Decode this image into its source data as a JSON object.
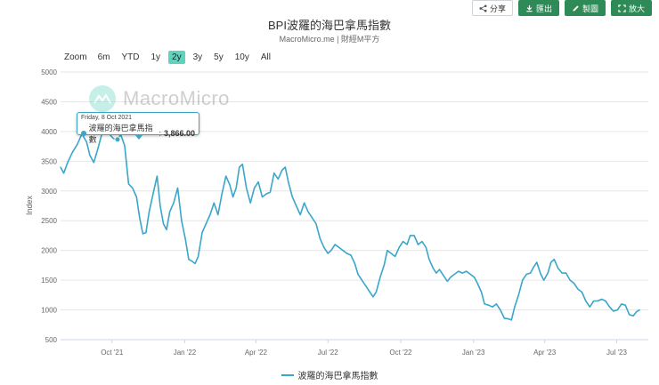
{
  "toolbar": {
    "share": "分享",
    "export": "匯出",
    "copy": "製圖",
    "enlarge": "放大"
  },
  "watermark": "MacroMicro",
  "zoom": {
    "label": "Zoom",
    "options": [
      "6m",
      "YTD",
      "1y",
      "2y",
      "3y",
      "5y",
      "10y",
      "All"
    ],
    "active": "2y"
  },
  "tooltip": {
    "date": "Friday, 8 Oct 2021",
    "series": "波羅的海巴拿馬指數",
    "value": "3,866.00"
  },
  "colors": {
    "series": "#3aa6c9",
    "active_zoom": "#5fd3be",
    "button_green": "#2e8b57"
  },
  "chart_data": {
    "type": "line",
    "title": "BPI波羅的海巴拿馬指數",
    "subtitle": "MacroMicro.me | 財經M平方",
    "ylabel": "Index",
    "ylim": [
      500,
      5000
    ],
    "yticks": [
      500,
      1000,
      1500,
      2000,
      2500,
      3000,
      3500,
      4000,
      4500,
      5000
    ],
    "xlim": [
      "2021-07-28",
      "2023-08-10"
    ],
    "xticks": [
      {
        "date": "2021-10-01",
        "label": "Oct '21"
      },
      {
        "date": "2022-01-01",
        "label": "Jan '22"
      },
      {
        "date": "2022-04-01",
        "label": "Apr '22"
      },
      {
        "date": "2022-07-01",
        "label": "Jul '22"
      },
      {
        "date": "2022-10-01",
        "label": "Oct '22"
      },
      {
        "date": "2023-01-01",
        "label": "Jan '23"
      },
      {
        "date": "2023-04-01",
        "label": "Apr '23"
      },
      {
        "date": "2023-07-01",
        "label": "Jul '23"
      }
    ],
    "grid": true,
    "legend_position": "bottom",
    "series": [
      {
        "name": "波羅的海巴拿馬指數",
        "points": [
          [
            "2021-07-28",
            3400
          ],
          [
            "2021-08-01",
            3300
          ],
          [
            "2021-08-06",
            3480
          ],
          [
            "2021-08-12",
            3650
          ],
          [
            "2021-08-18",
            3780
          ],
          [
            "2021-08-24",
            3960
          ],
          [
            "2021-08-30",
            3820
          ],
          [
            "2021-09-03",
            3600
          ],
          [
            "2021-09-08",
            3480
          ],
          [
            "2021-09-13",
            3700
          ],
          [
            "2021-09-18",
            3950
          ],
          [
            "2021-09-23",
            4060
          ],
          [
            "2021-09-28",
            3950
          ],
          [
            "2021-10-03",
            3880
          ],
          [
            "2021-10-08",
            3866
          ],
          [
            "2021-10-12",
            3950
          ],
          [
            "2021-10-17",
            3760
          ],
          [
            "2021-10-22",
            3120
          ],
          [
            "2021-10-27",
            3050
          ],
          [
            "2021-11-01",
            2900
          ],
          [
            "2021-11-05",
            2550
          ],
          [
            "2021-11-09",
            2280
          ],
          [
            "2021-11-13",
            2300
          ],
          [
            "2021-11-17",
            2650
          ],
          [
            "2021-11-22",
            2950
          ],
          [
            "2021-11-27",
            3250
          ],
          [
            "2021-12-01",
            2750
          ],
          [
            "2021-12-05",
            2450
          ],
          [
            "2021-12-09",
            2350
          ],
          [
            "2021-12-13",
            2650
          ],
          [
            "2021-12-18",
            2800
          ],
          [
            "2021-12-23",
            3050
          ],
          [
            "2021-12-28",
            2500
          ],
          [
            "2022-01-02",
            2180
          ],
          [
            "2022-01-06",
            1850
          ],
          [
            "2022-01-10",
            1820
          ],
          [
            "2022-01-14",
            1780
          ],
          [
            "2022-01-18",
            1900
          ],
          [
            "2022-01-23",
            2300
          ],
          [
            "2022-01-28",
            2450
          ],
          [
            "2022-02-02",
            2600
          ],
          [
            "2022-02-07",
            2800
          ],
          [
            "2022-02-12",
            2600
          ],
          [
            "2022-02-17",
            2950
          ],
          [
            "2022-02-22",
            3250
          ],
          [
            "2022-02-27",
            3100
          ],
          [
            "2022-03-03",
            2900
          ],
          [
            "2022-03-07",
            3050
          ],
          [
            "2022-03-11",
            3400
          ],
          [
            "2022-03-15",
            3450
          ],
          [
            "2022-03-20",
            3050
          ],
          [
            "2022-03-25",
            2800
          ],
          [
            "2022-03-30",
            3050
          ],
          [
            "2022-04-04",
            3150
          ],
          [
            "2022-04-09",
            2900
          ],
          [
            "2022-04-14",
            2950
          ],
          [
            "2022-04-19",
            2980
          ],
          [
            "2022-04-24",
            3300
          ],
          [
            "2022-04-29",
            3200
          ],
          [
            "2022-05-04",
            3350
          ],
          [
            "2022-05-08",
            3400
          ],
          [
            "2022-05-12",
            3150
          ],
          [
            "2022-05-17",
            2900
          ],
          [
            "2022-05-22",
            2750
          ],
          [
            "2022-05-27",
            2600
          ],
          [
            "2022-06-01",
            2800
          ],
          [
            "2022-06-06",
            2650
          ],
          [
            "2022-06-11",
            2550
          ],
          [
            "2022-06-16",
            2450
          ],
          [
            "2022-06-21",
            2200
          ],
          [
            "2022-06-26",
            2050
          ],
          [
            "2022-07-01",
            1950
          ],
          [
            "2022-07-05",
            2000
          ],
          [
            "2022-07-10",
            2100
          ],
          [
            "2022-07-15",
            2050
          ],
          [
            "2022-07-20",
            2000
          ],
          [
            "2022-07-25",
            1950
          ],
          [
            "2022-07-30",
            1920
          ],
          [
            "2022-08-04",
            1780
          ],
          [
            "2022-08-08",
            1600
          ],
          [
            "2022-08-13",
            1500
          ],
          [
            "2022-08-18",
            1400
          ],
          [
            "2022-08-23",
            1300
          ],
          [
            "2022-08-27",
            1220
          ],
          [
            "2022-08-31",
            1300
          ],
          [
            "2022-09-05",
            1550
          ],
          [
            "2022-09-10",
            1750
          ],
          [
            "2022-09-14",
            2000
          ],
          [
            "2022-09-19",
            1950
          ],
          [
            "2022-09-24",
            1900
          ],
          [
            "2022-09-29",
            2050
          ],
          [
            "2022-10-04",
            2150
          ],
          [
            "2022-10-09",
            2100
          ],
          [
            "2022-10-13",
            2250
          ],
          [
            "2022-10-18",
            2250
          ],
          [
            "2022-10-23",
            2100
          ],
          [
            "2022-10-28",
            2150
          ],
          [
            "2022-11-02",
            2050
          ],
          [
            "2022-11-06",
            1850
          ],
          [
            "2022-11-11",
            1700
          ],
          [
            "2022-11-15",
            1620
          ],
          [
            "2022-11-19",
            1680
          ],
          [
            "2022-11-24",
            1580
          ],
          [
            "2022-11-29",
            1480
          ],
          [
            "2022-12-03",
            1550
          ],
          [
            "2022-12-08",
            1600
          ],
          [
            "2022-12-13",
            1650
          ],
          [
            "2022-12-18",
            1620
          ],
          [
            "2022-12-23",
            1650
          ],
          [
            "2022-12-28",
            1600
          ],
          [
            "2023-01-02",
            1550
          ],
          [
            "2023-01-06",
            1450
          ],
          [
            "2023-01-11",
            1300
          ],
          [
            "2023-01-15",
            1100
          ],
          [
            "2023-01-20",
            1080
          ],
          [
            "2023-01-25",
            1050
          ],
          [
            "2023-01-30",
            1100
          ],
          [
            "2023-02-04",
            1000
          ],
          [
            "2023-02-09",
            860
          ],
          [
            "2023-02-14",
            850
          ],
          [
            "2023-02-18",
            830
          ],
          [
            "2023-02-22",
            1050
          ],
          [
            "2023-02-27",
            1250
          ],
          [
            "2023-03-04",
            1500
          ],
          [
            "2023-03-09",
            1600
          ],
          [
            "2023-03-14",
            1620
          ],
          [
            "2023-03-18",
            1720
          ],
          [
            "2023-03-22",
            1800
          ],
          [
            "2023-03-27",
            1600
          ],
          [
            "2023-03-31",
            1500
          ],
          [
            "2023-04-05",
            1620
          ],
          [
            "2023-04-09",
            1800
          ],
          [
            "2023-04-13",
            1850
          ],
          [
            "2023-04-18",
            1700
          ],
          [
            "2023-04-23",
            1620
          ],
          [
            "2023-04-28",
            1620
          ],
          [
            "2023-05-03",
            1500
          ],
          [
            "2023-05-08",
            1450
          ],
          [
            "2023-05-13",
            1350
          ],
          [
            "2023-05-18",
            1300
          ],
          [
            "2023-05-23",
            1150
          ],
          [
            "2023-05-28",
            1050
          ],
          [
            "2023-06-02",
            1150
          ],
          [
            "2023-06-07",
            1150
          ],
          [
            "2023-06-12",
            1180
          ],
          [
            "2023-06-17",
            1150
          ],
          [
            "2023-06-22",
            1050
          ],
          [
            "2023-06-27",
            980
          ],
          [
            "2023-07-02",
            1000
          ],
          [
            "2023-07-07",
            1100
          ],
          [
            "2023-07-12",
            1080
          ],
          [
            "2023-07-17",
            920
          ],
          [
            "2023-07-22",
            900
          ],
          [
            "2023-07-26",
            970
          ],
          [
            "2023-07-30",
            1000
          ]
        ]
      }
    ]
  }
}
